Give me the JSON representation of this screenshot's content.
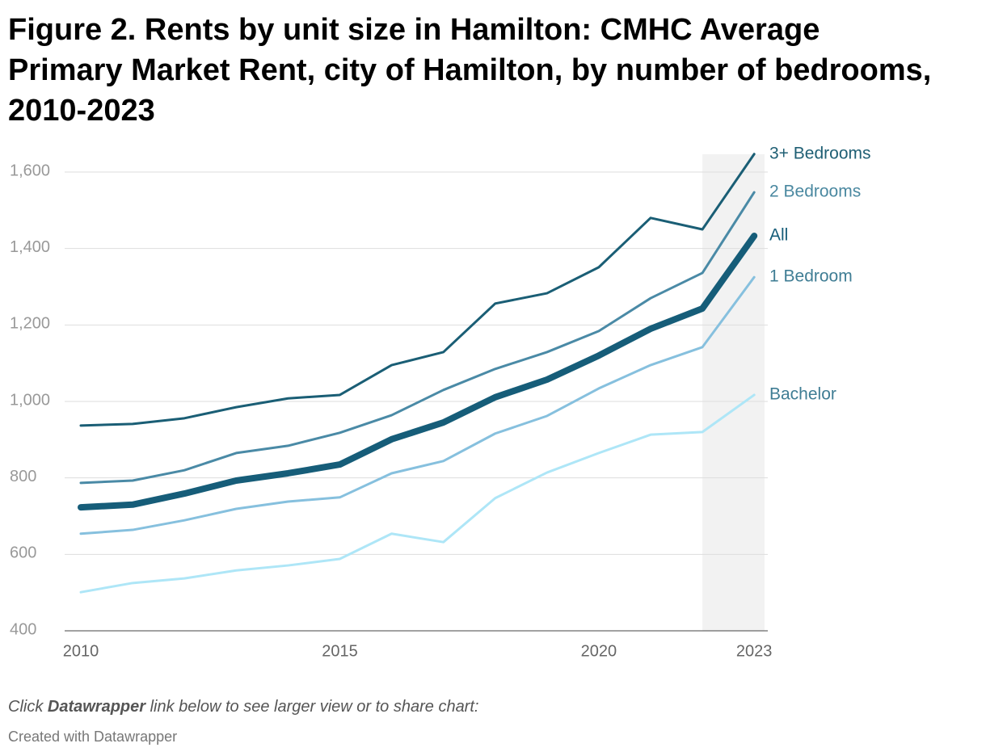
{
  "chart_data": {
    "type": "line",
    "title": "Figure 2. Rents by unit size in Hamilton: CMHC Average Primary Market Rent, city of Hamilton, by number of bedrooms, 2010-2023",
    "x": [
      2010,
      2011,
      2012,
      2013,
      2014,
      2015,
      2016,
      2017,
      2018,
      2019,
      2020,
      2021,
      2022,
      2023
    ],
    "xlim": [
      2010,
      2023.2
    ],
    "xticks": [
      2010,
      2015,
      2020,
      2023
    ],
    "shade_x": [
      2022,
      2023.2
    ],
    "ylim": [
      400,
      1600
    ],
    "yticks": [
      400,
      600,
      800,
      {
        "value": 1000,
        "label": "1,000"
      },
      {
        "value": 1200,
        "label": "1,200"
      },
      {
        "value": 1400,
        "label": "1,400"
      },
      {
        "value": 1600,
        "label": "1,600"
      }
    ],
    "grid": true,
    "series": [
      {
        "name": "3+ Bedrooms",
        "color": "#1a5e75",
        "label_color": "#1f5f74",
        "width": 3,
        "values": [
          937,
          941,
          956,
          985,
          1008,
          1017,
          1095,
          1129,
          1256,
          1283,
          1351,
          1480,
          1450,
          1647
        ]
      },
      {
        "name": "2 Bedrooms",
        "color": "#4a8aa6",
        "label_color": "#4a88a0",
        "width": 3,
        "values": [
          787,
          793,
          820,
          865,
          884,
          918,
          964,
          1030,
          1085,
          1129,
          1184,
          1270,
          1336,
          1547
        ]
      },
      {
        "name": "All",
        "color": "#165d79",
        "label_color": "#165d79",
        "width": 8,
        "values": [
          723,
          730,
          759,
          793,
          812,
          835,
          901,
          945,
          1011,
          1057,
          1120,
          1190,
          1243,
          1433
        ]
      },
      {
        "name": "1 Bedroom",
        "color": "#86c0de",
        "label_color": "#3f7d94",
        "width": 3,
        "values": [
          654,
          664,
          689,
          719,
          738,
          749,
          812,
          844,
          916,
          962,
          1034,
          1095,
          1142,
          1325
        ]
      },
      {
        "name": "Bachelor",
        "color": "#aee6f7",
        "label_color": "#3f7d94",
        "width": 3,
        "values": [
          501,
          525,
          537,
          558,
          571,
          588,
          654,
          632,
          747,
          814,
          865,
          913,
          920,
          1017
        ]
      }
    ],
    "note": [
      "Click ",
      "Datawrapper",
      " link below to see larger view or to share chart:"
    ],
    "credit": "Created with Datawrapper"
  }
}
